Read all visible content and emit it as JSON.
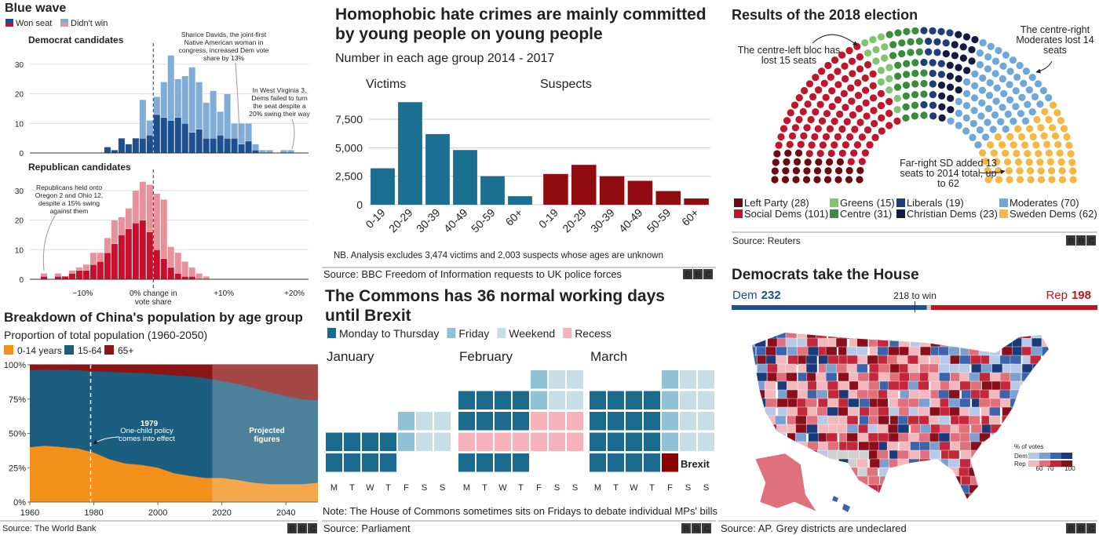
{
  "logo": "BBC",
  "chart_data": [
    {
      "type": "histogram",
      "title": "Blue wave",
      "legend": [
        "Won seat",
        "Didn't win"
      ],
      "bins": [
        -17,
        -16,
        -15,
        -14,
        -13,
        -12,
        -11,
        -10,
        -9,
        -8,
        -7,
        -6,
        -5,
        -4,
        -3,
        -2,
        -1,
        0,
        1,
        2,
        3,
        4,
        5,
        6,
        7,
        8,
        9,
        10,
        11,
        12,
        13,
        14,
        15,
        16,
        17,
        18,
        19,
        20
      ],
      "xlim": [
        -17.5,
        22
      ],
      "xticks": [
        {
          "value": -10,
          "label": "−10%"
        },
        {
          "value": 0,
          "label": "0% change in vote share"
        },
        {
          "value": 10,
          "label": "+10%"
        },
        {
          "value": 20,
          "label": "+20%"
        }
      ],
      "stacked": true,
      "grid": true,
      "panels": [
        {
          "subtitle": "Democrat candidates",
          "ylim": [
            0,
            35
          ],
          "yticks": [
            0,
            10,
            20,
            30
          ],
          "series": [
            {
              "color": "#1d4f91",
              "values": [
                0,
                0,
                0,
                0,
                0,
                0,
                0,
                0,
                0,
                0,
                2,
                1,
                5,
                3,
                5,
                5,
                6,
                13,
                12,
                11,
                12,
                10,
                7,
                8,
                5,
                5,
                6,
                5,
                5,
                3,
                4,
                1,
                0,
                0,
                0,
                0,
                0
              ]
            },
            {
              "color": "#80acd6",
              "values": [
                0,
                0,
                0,
                0,
                0,
                0,
                0,
                0,
                0,
                0,
                0,
                0,
                0,
                0,
                0,
                13,
                5,
                6,
                12,
                22,
                13,
                16,
                22,
                16,
                12,
                16,
                8,
                15,
                5,
                7,
                6,
                2,
                1,
                1,
                0,
                1,
                1
              ]
            }
          ],
          "annotations": [
            "Sharice Davids, the joint-first Native American woman in congress, increased Dem vote share by 13%",
            "In West Virginia 3, Dems failed to turn the seat despite a 20% swing their way"
          ]
        },
        {
          "subtitle": "Republican candidates",
          "ylim": [
            0,
            35
          ],
          "yticks": [
            0,
            10,
            20,
            30
          ],
          "series": [
            {
              "color": "#c8102e",
              "values": [
                0,
                1,
                0,
                1,
                1,
                2,
                3,
                3,
                5,
                6,
                9,
                12,
                15,
                17,
                19,
                20,
                16,
                10,
                7,
                4,
                2,
                1,
                1,
                0,
                0,
                0,
                0,
                0,
                0,
                0,
                0,
                0,
                0,
                0,
                0,
                0,
                0
              ]
            },
            {
              "color": "#e8919b",
              "values": [
                0,
                1,
                0,
                1,
                0,
                1,
                1,
                2,
                4,
                3,
                5,
                8,
                6,
                7,
                11,
                13,
                16,
                19,
                20,
                7,
                7,
                5,
                3,
                2,
                1,
                0,
                0,
                0,
                0,
                0,
                0,
                0,
                0,
                0,
                0,
                0,
                0
              ]
            }
          ],
          "annotations": [
            "Republicans held onto Oregon 2 and Ohio 12, despite a 15% swing against them"
          ]
        }
      ],
      "source": "Source: The World Bank"
    },
    {
      "type": "bar",
      "title": "Homophobic hate crimes are mainly committed by young people on young people",
      "subtitle": "Number in each age group 2014 - 2017",
      "categories": [
        "0-19",
        "20-29",
        "30-39",
        "40-49",
        "50-59",
        "60+"
      ],
      "panels": [
        {
          "name": "Victims",
          "color": "#1b6f90",
          "values": [
            3200,
            9000,
            6200,
            4800,
            2500,
            750
          ]
        },
        {
          "name": "Suspects",
          "color": "#900c10",
          "values": [
            2700,
            3500,
            2500,
            2100,
            1200,
            550
          ]
        }
      ],
      "ylim": [
        0,
        10000
      ],
      "yticks": [
        0,
        {
          "value": 2500,
          "label": "2,500"
        },
        {
          "value": 5000,
          "label": "5,000"
        },
        {
          "value": 7500,
          "label": "7,500"
        }
      ],
      "grid": true,
      "note": "NB. Analysis excludes 3,474 victims and 2,003 suspects whose ages are unknown",
      "source": "Source: BBC Freedom of Information requests to UK police forces"
    },
    {
      "type": "parliament",
      "title": "Results of the 2018 election",
      "series": [
        {
          "name": "Left Party",
          "value": 28,
          "value_label": "(28)",
          "color": "#6b0a0f"
        },
        {
          "name": "Social Dems",
          "value": 101,
          "value_label": "(101)",
          "color": "#c0152a"
        },
        {
          "name": "Greens",
          "value": 15,
          "value_label": "(15)",
          "color": "#7fc46f"
        },
        {
          "name": "Centre",
          "value": 31,
          "value_label": "(31)",
          "color": "#3b8c3a"
        },
        {
          "name": "Liberals",
          "value": 19,
          "value_label": "(19)",
          "color": "#1f3d7a"
        },
        {
          "name": "Christian Dems",
          "value": 23,
          "value_label": "(23)",
          "color": "#141a40"
        },
        {
          "name": "Moderates",
          "value": 70,
          "value_label": "(70)",
          "color": "#6fa8d8"
        },
        {
          "name": "Sweden Dems",
          "value": 62,
          "value_label": "(62)",
          "color": "#f6b843"
        }
      ],
      "annotations": [
        "The centre-left bloc has lost 15 seats",
        "The centre-right Moderates lost 14 seats",
        "Far-right SD added 13 seats to 2014 total, up to 62"
      ],
      "source": "Source: Reuters"
    },
    {
      "type": "area",
      "title": "Breakdown of China's population by age group",
      "subtitle": "Proportion of total population (1960-2050)",
      "x": [
        1960,
        1965,
        1970,
        1975,
        1980,
        1985,
        1990,
        1995,
        2000,
        2005,
        2010,
        2015,
        2020,
        2025,
        2030,
        2035,
        2040,
        2045,
        2050
      ],
      "series": [
        {
          "name": "0-14 years",
          "color": "#f39019",
          "values": [
            40,
            41,
            40,
            39,
            36,
            31,
            28,
            27,
            25,
            21,
            19,
            17.5,
            17.5,
            16,
            14,
            13,
            13,
            13,
            14
          ]
        },
        {
          "name": "15-64",
          "color": "#1c5e7f",
          "values": [
            56,
            55.5,
            56.3,
            57,
            59.3,
            63.8,
            66.4,
            66.9,
            68.1,
            71.3,
            72.6,
            72.8,
            70.5,
            70,
            69,
            67,
            64,
            62,
            60
          ]
        },
        {
          "name": "65+",
          "color": "#8b1414",
          "values": [
            4,
            3.5,
            3.7,
            4,
            4.7,
            5.2,
            5.6,
            6.1,
            6.9,
            7.7,
            8.4,
            9.7,
            12,
            14,
            17,
            20,
            23,
            25,
            26
          ]
        }
      ],
      "stacked": true,
      "xlim": [
        1960,
        2050
      ],
      "ylim": [
        0,
        100
      ],
      "xticks": [
        1960,
        1980,
        2000,
        2020,
        2040
      ],
      "yticks": [
        {
          "value": 0,
          "label": "0%"
        },
        {
          "value": 25,
          "label": "25%"
        },
        {
          "value": 50,
          "label": "50%"
        },
        {
          "value": 75,
          "label": "75%"
        },
        {
          "value": 100,
          "label": "100%"
        }
      ],
      "annotations": [
        {
          "x": 1979,
          "text": "One-child policy comes into effect"
        },
        {
          "x": 2017,
          "text": "Projected figures"
        }
      ],
      "source": "Source: The World Bank"
    },
    {
      "type": "calendar",
      "title": "The Commons has 36 normal working days until Brexit",
      "legend": [
        {
          "name": "Monday to Thursday",
          "color": "#1a6b8d"
        },
        {
          "name": "Friday",
          "color": "#8fc2d4"
        },
        {
          "name": "Weekend",
          "color": "#c8dee6"
        },
        {
          "name": "Recess",
          "color": "#f6b3bc"
        }
      ],
      "highlight_color": "#8b0000",
      "days": [
        "M",
        "T",
        "W",
        "T",
        "F",
        "S",
        "S"
      ],
      "months": [
        {
          "name": "January",
          "weeks": [
            [
              null,
              null,
              null,
              null,
              1,
              2,
              2
            ],
            [
              0,
              0,
              0,
              0,
              1,
              2,
              2
            ],
            [
              0,
              0,
              0,
              0,
              null,
              null,
              null
            ]
          ]
        },
        {
          "name": "February",
          "weeks": [
            [
              null,
              null,
              null,
              null,
              1,
              2,
              2
            ],
            [
              0,
              0,
              0,
              0,
              1,
              2,
              2
            ],
            [
              0,
              0,
              0,
              0,
              3,
              3,
              3
            ],
            [
              3,
              3,
              3,
              3,
              3,
              3,
              3
            ],
            [
              0,
              0,
              0,
              0,
              null,
              null,
              null
            ]
          ]
        },
        {
          "name": "March",
          "weeks": [
            [
              null,
              null,
              null,
              null,
              1,
              2,
              2
            ],
            [
              0,
              0,
              0,
              0,
              1,
              2,
              2
            ],
            [
              0,
              0,
              0,
              0,
              1,
              2,
              2
            ],
            [
              0,
              0,
              0,
              0,
              1,
              2,
              2
            ],
            [
              0,
              0,
              0,
              0,
              "Brexit",
              null,
              null
            ]
          ]
        }
      ],
      "note": "Note: The House of Commons sometimes sits on Fridays to debate individual MPs' bills",
      "source": "Source: Parliament"
    },
    {
      "type": "seats-bar",
      "title": "Democrats take the House",
      "series": [
        {
          "name": "Dem",
          "value": 232,
          "color": "#1d4f91"
        },
        {
          "name": "Rep",
          "value": 198,
          "color": "#c0141f"
        }
      ],
      "xlim": [
        0,
        435
      ],
      "threshold": {
        "value": 218,
        "label": "218 to win"
      },
      "map_legend": {
        "title": "% of votes",
        "rows": [
          {
            "name": "Dem",
            "colors": [
              "#b7c9e7",
              "#7d9ed0",
              "#3c64ad",
              "#1a3a7a"
            ]
          },
          {
            "name": "Rep",
            "colors": [
              "#f2b8bc",
              "#e0707b",
              "#c4273a",
              "#8a0f1c"
            ]
          }
        ],
        "ticks": [
          60,
          70,
          100
        ]
      },
      "source": "Source: AP. Grey districts are undeclared"
    }
  ]
}
